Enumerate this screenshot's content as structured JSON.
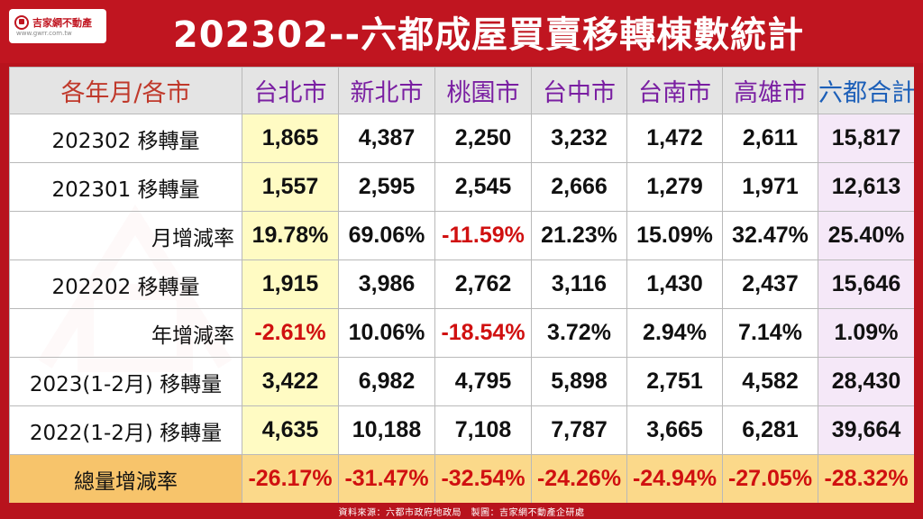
{
  "title": "202302--六都成屋買賣移轉棟數統計",
  "logo": {
    "name": "吉家網不動產",
    "url": "www.gwrr.com.tw"
  },
  "footer": "資料來源：六都市政府地政局　製圖：吉家網不動產企研處",
  "colors": {
    "frame": "#b8131d",
    "header_bg": "#e4e4e4",
    "first_city_col": "#fffab9",
    "total_col": "#f3e4f7",
    "total_row": "#fbd98a",
    "negative": "#d01010"
  },
  "chart_data": {
    "type": "table",
    "title": "202302--六都成屋買賣移轉棟數統計",
    "columns": [
      "各年月/各市",
      "台北市",
      "新北市",
      "桃園市",
      "台中市",
      "台南市",
      "高雄市",
      "六都合計"
    ],
    "rows": [
      {
        "label": "202302 移轉量",
        "kind": "volume",
        "values": [
          "1,865",
          "4,387",
          "2,250",
          "3,232",
          "1,472",
          "2,611",
          "15,817"
        ]
      },
      {
        "label": "202301 移轉量",
        "kind": "volume",
        "values": [
          "1,557",
          "2,595",
          "2,545",
          "2,666",
          "1,279",
          "1,971",
          "12,613"
        ]
      },
      {
        "label": "月增減率",
        "kind": "rate",
        "values": [
          "19.78%",
          "69.06%",
          "-11.59%",
          "21.23%",
          "15.09%",
          "32.47%",
          "25.40%"
        ]
      },
      {
        "label": "202202 移轉量",
        "kind": "volume",
        "values": [
          "1,915",
          "3,986",
          "2,762",
          "3,116",
          "1,430",
          "2,437",
          "15,646"
        ]
      },
      {
        "label": "年增減率",
        "kind": "rate",
        "values": [
          "-2.61%",
          "10.06%",
          "-18.54%",
          "3.72%",
          "2.94%",
          "7.14%",
          "1.09%"
        ]
      },
      {
        "label": "2023(1-2月) 移轉量",
        "kind": "volume",
        "values": [
          "3,422",
          "6,982",
          "4,795",
          "5,898",
          "2,751",
          "4,582",
          "28,430"
        ]
      },
      {
        "label": "2022(1-2月) 移轉量",
        "kind": "volume",
        "values": [
          "4,635",
          "10,188",
          "7,108",
          "7,787",
          "3,665",
          "6,281",
          "39,664"
        ]
      },
      {
        "label": "總量增減率",
        "kind": "total",
        "values": [
          "-26.17%",
          "-31.47%",
          "-32.54%",
          "-24.26%",
          "-24.94%",
          "-27.05%",
          "-28.32%"
        ]
      }
    ]
  }
}
